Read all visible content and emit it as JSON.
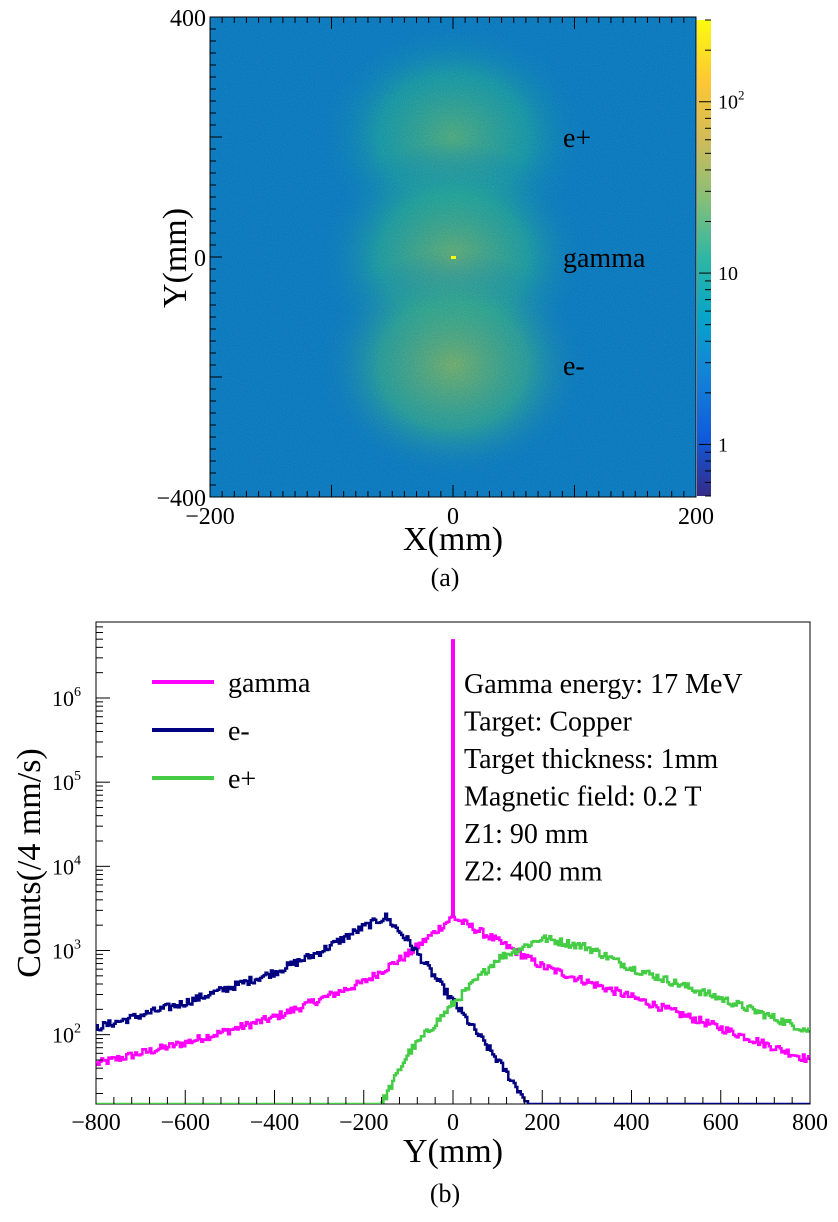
{
  "figure": {
    "panel_a_caption": "(a)",
    "panel_b_caption": "(b)"
  },
  "chart_data": [
    {
      "type": "heatmap",
      "panel": "(a)",
      "xlabel": "X(mm)",
      "ylabel": "Y(mm)",
      "xlim": [
        -200,
        200
      ],
      "ylim": [
        -400,
        400
      ],
      "x_ticks": [
        -200,
        0,
        200
      ],
      "y_ticks": [
        -400,
        0,
        400
      ],
      "z_scale": "log",
      "z_range": [
        0.5,
        300
      ],
      "z_ticks": [
        {
          "value": 1,
          "label": "1"
        },
        {
          "value": 10,
          "label": "10"
        },
        {
          "value": 100,
          "label": "10",
          "exp": "2"
        }
      ],
      "colormap": [
        "#352a87",
        "#0f5cdd",
        "#1481d6",
        "#06a4ca",
        "#2eb7a4",
        "#87bf77",
        "#d1bb59",
        "#fec832",
        "#f9fb0e"
      ],
      "background_level": 3,
      "clusters": [
        {
          "label": "e+",
          "x_mm": 0,
          "y_mm": 200,
          "peak_counts": 18,
          "color": "#22dd22"
        },
        {
          "label": "gamma",
          "x_mm": 0,
          "y_mm": 0,
          "peak_counts": 22,
          "color": "#ee22ee"
        },
        {
          "label": "e-",
          "x_mm": 0,
          "y_mm": -180,
          "peak_counts": 25,
          "color": "#1a22bb"
        }
      ],
      "hot_spot": {
        "x_mm": 0,
        "y_mm": 0,
        "counts": 300
      }
    },
    {
      "type": "line",
      "panel": "(b)",
      "title": "",
      "xlabel": "Y(mm)",
      "ylabel": "Counts(/4 mm/s)",
      "xlim": [
        -800,
        800
      ],
      "x_ticks": [
        -800,
        -600,
        -400,
        -200,
        0,
        200,
        400,
        600,
        800
      ],
      "y_scale": "log",
      "ylim": [
        15,
        8000000
      ],
      "y_ticks": [
        {
          "value": 100,
          "label": "10",
          "exp": "2"
        },
        {
          "value": 1000,
          "label": "10",
          "exp": "3"
        },
        {
          "value": 10000,
          "label": "10",
          "exp": "4"
        },
        {
          "value": 100000,
          "label": "10",
          "exp": "5"
        },
        {
          "value": 1000000,
          "label": "10",
          "exp": "6"
        }
      ],
      "annotations": [
        "Gamma energy: 17 MeV",
        "Target: Copper",
        "Target thickness: 1mm",
        "Magnetic field: 0.2 T",
        "Z1: 90 mm",
        "Z2: 400 mm"
      ],
      "series": [
        {
          "name": "gamma",
          "color": "#ff00ff",
          "points": [
            [
              -800,
              45
            ],
            [
              -600,
              80
            ],
            [
              -400,
              160
            ],
            [
              -200,
              420
            ],
            [
              -100,
              900
            ],
            [
              0,
              2500
            ],
            [
              100,
              1300
            ],
            [
              200,
              650
            ],
            [
              400,
              280
            ],
            [
              600,
              120
            ],
            [
              800,
              50
            ]
          ],
          "spike": {
            "x": 0,
            "y": 5000000
          }
        },
        {
          "name": "e-",
          "color": "#000080",
          "points": [
            [
              -800,
              120
            ],
            [
              -600,
              240
            ],
            [
              -400,
              550
            ],
            [
              -300,
              950
            ],
            [
              -200,
              1900
            ],
            [
              -150,
              2500
            ],
            [
              -100,
              1300
            ],
            [
              0,
              250
            ],
            [
              100,
              50
            ],
            [
              170,
              15
            ],
            [
              800,
              15
            ]
          ]
        },
        {
          "name": "e+",
          "color": "#44cc44",
          "points": [
            [
              -800,
              15
            ],
            [
              -160,
              15
            ],
            [
              -100,
              60
            ],
            [
              0,
              230
            ],
            [
              100,
              800
            ],
            [
              200,
              1400
            ],
            [
              300,
              1100
            ],
            [
              400,
              620
            ],
            [
              600,
              270
            ],
            [
              800,
              110
            ]
          ]
        }
      ]
    }
  ]
}
